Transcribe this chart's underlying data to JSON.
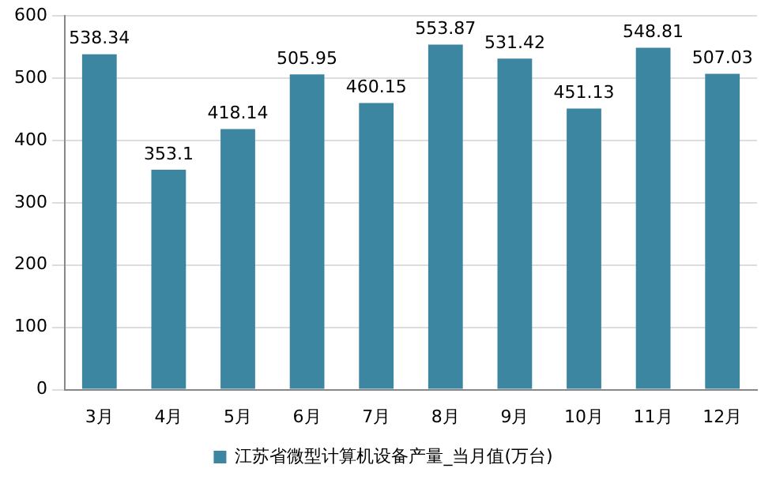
{
  "chart_data": {
    "type": "bar",
    "categories": [
      "3月",
      "4月",
      "5月",
      "6月",
      "7月",
      "8月",
      "9月",
      "10月",
      "11月",
      "12月"
    ],
    "series": [
      {
        "name": "江苏省微型计算机设备产量_当月值(万台)",
        "color": "#3d86a2",
        "values": [
          538.34,
          353.1,
          418.14,
          505.95,
          460.15,
          553.87,
          531.42,
          451.13,
          548.81,
          507.03
        ]
      }
    ],
    "ylim": [
      0,
      600
    ],
    "yticks": [
      0,
      100,
      200,
      300,
      400,
      500,
      600
    ],
    "grid": "y",
    "legend": "bottom",
    "data_labels": true
  }
}
